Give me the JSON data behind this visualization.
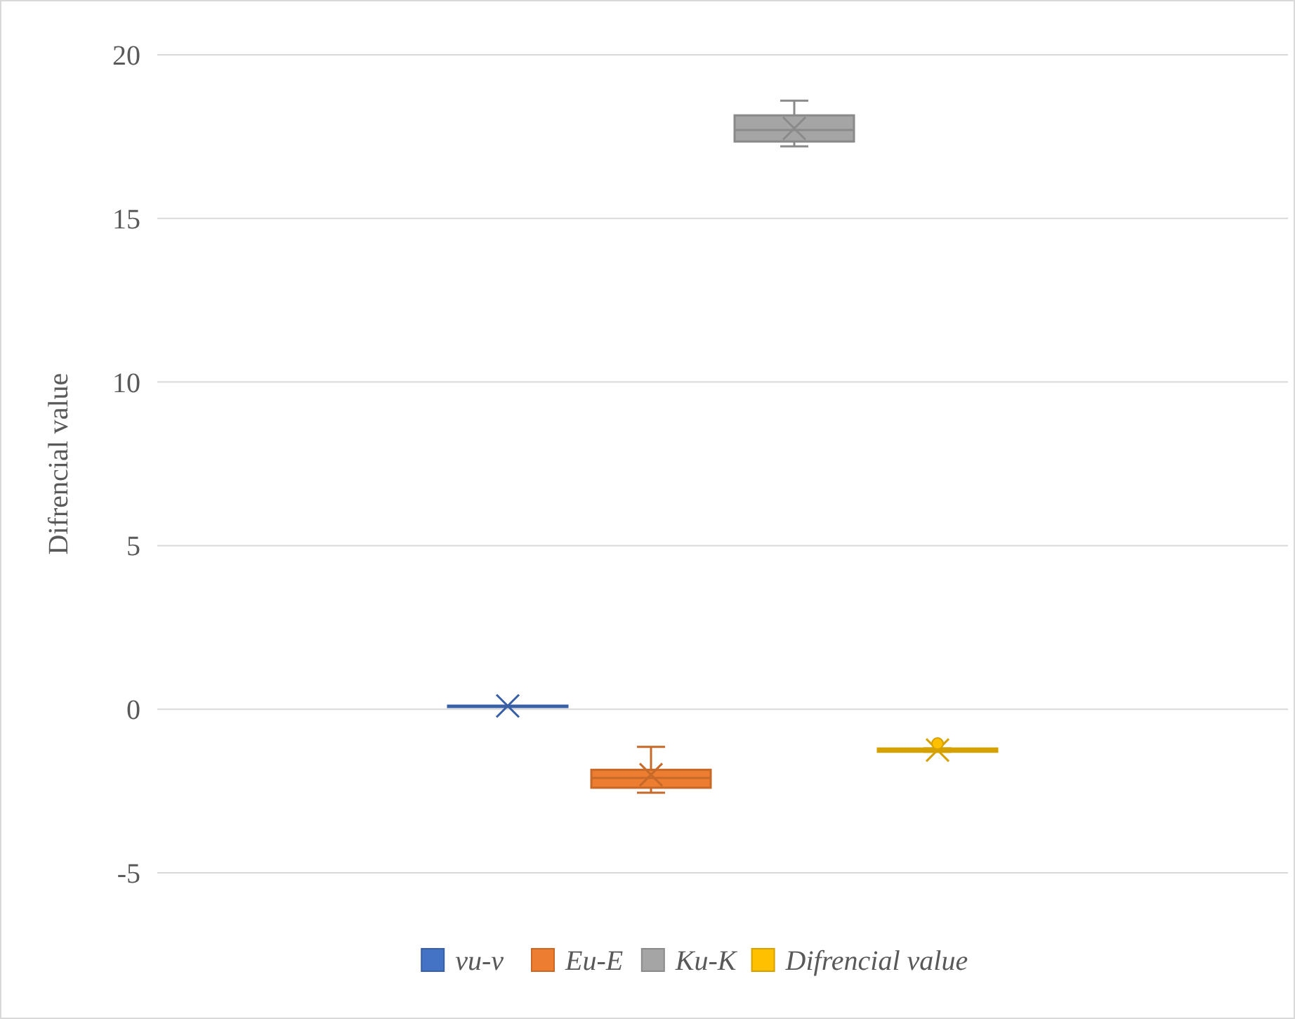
{
  "chart_data": {
    "type": "box",
    "ylabel": "Difrencial value",
    "categories": [
      null
    ],
    "ylim": [
      -5,
      20
    ],
    "yticks": [
      -5,
      0,
      5,
      10,
      15,
      20
    ],
    "grid": "y",
    "legend": "bottom",
    "marker": "cross",
    "series": [
      {
        "name": "vu-v",
        "color": "#4472c4",
        "boxes": [
          {
            "low": 0.1,
            "q1": 0.09,
            "median": 0.1,
            "q3": 0.11,
            "high": 0.1,
            "mean": 0.1
          }
        ]
      },
      {
        "name": "Eu-E",
        "color": "#ed7d31",
        "boxes": [
          {
            "low": -2.55,
            "q1": -2.4,
            "median": -2.1,
            "q3": -1.85,
            "high": -1.15,
            "mean": -2.0
          }
        ]
      },
      {
        "name": "Ku-K",
        "color": "#a5a5a5",
        "boxes": [
          {
            "low": 17.2,
            "q1": 17.35,
            "median": 17.7,
            "q3": 18.15,
            "high": 18.6,
            "mean": 17.75
          }
        ]
      },
      {
        "name": "Difrencial value",
        "color": "#ffc000",
        "boxes": [
          {
            "low": -1.3,
            "q1": -1.3,
            "median": -1.25,
            "q3": -1.2,
            "high": -1.2,
            "mean": -1.25,
            "outliers": [
              -1.05
            ]
          }
        ]
      }
    ]
  }
}
